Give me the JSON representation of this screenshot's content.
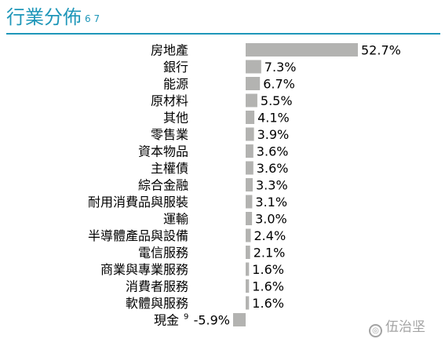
{
  "header": {
    "title": "行業分佈",
    "title_note": "6 7"
  },
  "chart_data": {
    "type": "bar",
    "orientation": "horizontal",
    "categories": [
      "房地產",
      "銀行",
      "能源",
      "原材料",
      "其他",
      "零售業",
      "資本物品",
      "主權債",
      "綜合金融",
      "耐用消費品與服裝",
      "運輸",
      "半導體產品與設備",
      "電信服務",
      "商業與專業服務",
      "消費者服務",
      "軟體與服務",
      "現金"
    ],
    "category_notes": [
      "",
      "",
      "",
      "",
      "",
      "",
      "",
      "",
      "",
      "",
      "",
      "",
      "",
      "",
      "",
      "",
      "9"
    ],
    "values": [
      52.7,
      7.3,
      6.7,
      5.5,
      4.1,
      3.9,
      3.6,
      3.6,
      3.3,
      3.1,
      3.0,
      2.4,
      2.1,
      1.6,
      1.6,
      1.6,
      -5.9
    ],
    "value_labels": [
      "52.7%",
      "7.3%",
      "6.7%",
      "5.5%",
      "4.1%",
      "3.9%",
      "3.6%",
      "3.6%",
      "3.3%",
      "3.1%",
      "3.0%",
      "2.4%",
      "2.1%",
      "1.6%",
      "1.6%",
      "1.6%",
      "-5.9%"
    ],
    "bar_color": "#b3b3b1",
    "grid": false,
    "legend": "none"
  },
  "watermark": {
    "text": "伍治坚"
  },
  "colors": {
    "accent": "#1f97b9"
  }
}
